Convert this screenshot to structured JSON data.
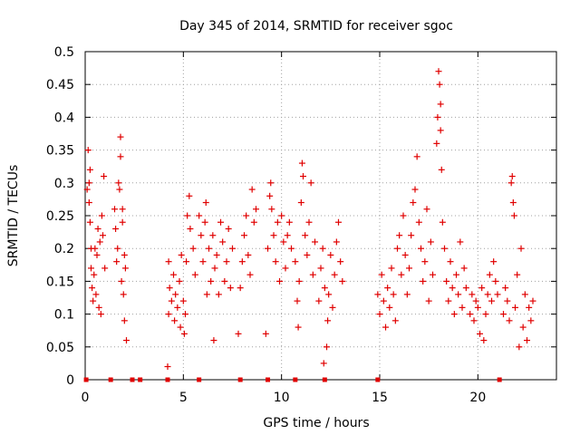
{
  "chart_data": {
    "type": "scatter",
    "title": "Day 345 of 2014, SRMTID for receiver sgoc",
    "xlabel": "GPS time / hours",
    "ylabel": "SRMTID / TECUs",
    "xlim": [
      0,
      24
    ],
    "ylim": [
      0,
      0.5
    ],
    "xticks": [
      0,
      5,
      10,
      15,
      20
    ],
    "xtick_labels": [
      "0",
      "5",
      "10",
      "15",
      "20"
    ],
    "yticks": [
      0,
      0.05,
      0.1,
      0.15,
      0.2,
      0.25,
      0.3,
      0.35,
      0.4,
      0.45,
      0.5
    ],
    "ytick_labels": [
      "0",
      "0.05",
      "0.1",
      "0.15",
      "0.2",
      "0.25",
      "0.3",
      "0.35",
      "0.4",
      "0.45",
      "0.5"
    ],
    "grid": true,
    "marker": "plus",
    "color": "#e00000",
    "series": [
      {
        "name": "SRMTID",
        "points": [
          [
            0.1,
            0.29
          ],
          [
            0.15,
            0.35
          ],
          [
            0.2,
            0.3
          ],
          [
            0.2,
            0.27
          ],
          [
            0.25,
            0.24
          ],
          [
            0.3,
            0.2
          ],
          [
            0.3,
            0.17
          ],
          [
            0.35,
            0.14
          ],
          [
            0.4,
            0.12
          ],
          [
            0.45,
            0.16
          ],
          [
            0.5,
            0.2
          ],
          [
            0.55,
            0.13
          ],
          [
            0.6,
            0.19
          ],
          [
            0.65,
            0.23
          ],
          [
            0.7,
            0.11
          ],
          [
            0.75,
            0.21
          ],
          [
            0.8,
            0.1
          ],
          [
            0.85,
            0.25
          ],
          [
            0.9,
            0.22
          ],
          [
            0.95,
            0.31
          ],
          [
            1.0,
            0.17
          ],
          [
            0.25,
            0.32
          ],
          [
            1.5,
            0.26
          ],
          [
            1.55,
            0.23
          ],
          [
            1.6,
            0.18
          ],
          [
            1.65,
            0.2
          ],
          [
            1.7,
            0.3
          ],
          [
            1.75,
            0.29
          ],
          [
            1.8,
            0.37
          ],
          [
            1.8,
            0.34
          ],
          [
            1.85,
            0.15
          ],
          [
            1.9,
            0.24
          ],
          [
            1.95,
            0.13
          ],
          [
            2.0,
            0.19
          ],
          [
            2.0,
            0.09
          ],
          [
            2.05,
            0.17
          ],
          [
            2.1,
            0.06
          ],
          [
            1.9,
            0.26
          ],
          [
            4.2,
            0.02
          ],
          [
            4.25,
            0.1
          ],
          [
            4.3,
            0.14
          ],
          [
            4.4,
            0.12
          ],
          [
            4.5,
            0.16
          ],
          [
            4.55,
            0.09
          ],
          [
            4.6,
            0.13
          ],
          [
            4.7,
            0.11
          ],
          [
            4.8,
            0.15
          ],
          [
            4.85,
            0.08
          ],
          [
            4.9,
            0.19
          ],
          [
            5.0,
            0.12
          ],
          [
            5.05,
            0.07
          ],
          [
            5.1,
            0.1
          ],
          [
            5.15,
            0.18
          ],
          [
            4.25,
            0.18
          ],
          [
            5.2,
            0.25
          ],
          [
            5.3,
            0.28
          ],
          [
            5.35,
            0.23
          ],
          [
            5.5,
            0.2
          ],
          [
            5.6,
            0.16
          ],
          [
            5.8,
            0.25
          ],
          [
            5.9,
            0.22
          ],
          [
            6.0,
            0.18
          ],
          [
            6.1,
            0.24
          ],
          [
            6.15,
            0.27
          ],
          [
            6.2,
            0.13
          ],
          [
            6.3,
            0.2
          ],
          [
            6.4,
            0.15
          ],
          [
            6.5,
            0.22
          ],
          [
            6.55,
            0.06
          ],
          [
            6.6,
            0.17
          ],
          [
            6.7,
            0.19
          ],
          [
            6.8,
            0.13
          ],
          [
            6.9,
            0.24
          ],
          [
            7.0,
            0.21
          ],
          [
            7.1,
            0.15
          ],
          [
            7.2,
            0.18
          ],
          [
            7.3,
            0.23
          ],
          [
            7.4,
            0.14
          ],
          [
            7.5,
            0.2
          ],
          [
            7.8,
            0.07
          ],
          [
            7.9,
            0.14
          ],
          [
            8.0,
            0.18
          ],
          [
            8.1,
            0.22
          ],
          [
            8.2,
            0.25
          ],
          [
            8.3,
            0.19
          ],
          [
            8.4,
            0.16
          ],
          [
            8.5,
            0.29
          ],
          [
            8.6,
            0.24
          ],
          [
            8.7,
            0.26
          ],
          [
            9.2,
            0.07
          ],
          [
            9.3,
            0.2
          ],
          [
            9.4,
            0.28
          ],
          [
            9.45,
            0.3
          ],
          [
            9.5,
            0.26
          ],
          [
            9.6,
            0.22
          ],
          [
            9.7,
            0.18
          ],
          [
            9.8,
            0.24
          ],
          [
            9.9,
            0.15
          ],
          [
            10.0,
            0.25
          ],
          [
            10.1,
            0.21
          ],
          [
            10.2,
            0.17
          ],
          [
            10.3,
            0.22
          ],
          [
            10.4,
            0.24
          ],
          [
            10.5,
            0.2
          ],
          [
            10.7,
            0.18
          ],
          [
            10.8,
            0.12
          ],
          [
            10.85,
            0.08
          ],
          [
            10.9,
            0.15
          ],
          [
            11.0,
            0.27
          ],
          [
            11.05,
            0.33
          ],
          [
            11.1,
            0.31
          ],
          [
            11.2,
            0.22
          ],
          [
            11.3,
            0.19
          ],
          [
            11.4,
            0.24
          ],
          [
            11.5,
            0.3
          ],
          [
            11.6,
            0.16
          ],
          [
            11.7,
            0.21
          ],
          [
            11.9,
            0.12
          ],
          [
            12.0,
            0.17
          ],
          [
            12.1,
            0.2
          ],
          [
            12.15,
            0.025
          ],
          [
            12.2,
            0.14
          ],
          [
            12.3,
            0.05
          ],
          [
            12.35,
            0.09
          ],
          [
            12.4,
            0.13
          ],
          [
            12.5,
            0.19
          ],
          [
            12.6,
            0.11
          ],
          [
            12.7,
            0.16
          ],
          [
            12.8,
            0.21
          ],
          [
            12.9,
            0.24
          ],
          [
            13.0,
            0.18
          ],
          [
            13.1,
            0.15
          ],
          [
            14.9,
            0.13
          ],
          [
            15.0,
            0.1
          ],
          [
            15.1,
            0.16
          ],
          [
            15.2,
            0.12
          ],
          [
            15.3,
            0.08
          ],
          [
            15.4,
            0.14
          ],
          [
            15.5,
            0.11
          ],
          [
            15.6,
            0.17
          ],
          [
            15.7,
            0.13
          ],
          [
            15.8,
            0.09
          ],
          [
            15.9,
            0.2
          ],
          [
            16.0,
            0.22
          ],
          [
            16.1,
            0.16
          ],
          [
            16.2,
            0.25
          ],
          [
            16.3,
            0.19
          ],
          [
            16.4,
            0.13
          ],
          [
            16.5,
            0.17
          ],
          [
            16.6,
            0.22
          ],
          [
            16.7,
            0.27
          ],
          [
            16.8,
            0.29
          ],
          [
            16.9,
            0.34
          ],
          [
            17.0,
            0.24
          ],
          [
            17.1,
            0.2
          ],
          [
            17.2,
            0.15
          ],
          [
            17.3,
            0.18
          ],
          [
            17.4,
            0.26
          ],
          [
            17.5,
            0.12
          ],
          [
            17.6,
            0.21
          ],
          [
            17.7,
            0.16
          ],
          [
            17.9,
            0.36
          ],
          [
            17.95,
            0.4
          ],
          [
            18.0,
            0.47
          ],
          [
            18.05,
            0.45
          ],
          [
            18.1,
            0.42
          ],
          [
            18.1,
            0.38
          ],
          [
            18.15,
            0.32
          ],
          [
            18.2,
            0.24
          ],
          [
            18.3,
            0.2
          ],
          [
            18.4,
            0.15
          ],
          [
            18.5,
            0.12
          ],
          [
            18.6,
            0.18
          ],
          [
            18.7,
            0.14
          ],
          [
            18.8,
            0.1
          ],
          [
            18.9,
            0.16
          ],
          [
            19.0,
            0.13
          ],
          [
            19.1,
            0.21
          ],
          [
            19.2,
            0.11
          ],
          [
            19.3,
            0.17
          ],
          [
            19.4,
            0.14
          ],
          [
            19.6,
            0.1
          ],
          [
            19.7,
            0.13
          ],
          [
            19.8,
            0.09
          ],
          [
            19.9,
            0.12
          ],
          [
            20.0,
            0.11
          ],
          [
            20.1,
            0.07
          ],
          [
            20.2,
            0.14
          ],
          [
            20.3,
            0.06
          ],
          [
            20.4,
            0.1
          ],
          [
            20.5,
            0.13
          ],
          [
            20.6,
            0.16
          ],
          [
            20.7,
            0.12
          ],
          [
            20.8,
            0.18
          ],
          [
            20.9,
            0.15
          ],
          [
            21.0,
            0.13
          ],
          [
            21.3,
            0.1
          ],
          [
            21.4,
            0.14
          ],
          [
            21.5,
            0.12
          ],
          [
            21.6,
            0.09
          ],
          [
            21.7,
            0.3
          ],
          [
            21.75,
            0.31
          ],
          [
            21.8,
            0.27
          ],
          [
            21.85,
            0.25
          ],
          [
            21.9,
            0.11
          ],
          [
            22.0,
            0.16
          ],
          [
            22.1,
            0.05
          ],
          [
            22.2,
            0.2
          ],
          [
            22.3,
            0.08
          ],
          [
            22.4,
            0.13
          ],
          [
            22.5,
            0.06
          ],
          [
            22.6,
            0.11
          ],
          [
            22.7,
            0.09
          ],
          [
            22.8,
            0.12
          ]
        ]
      }
    ],
    "zero_points": [
      0.05,
      1.3,
      2.4,
      2.8,
      4.2,
      5.8,
      7.9,
      9.3,
      10.7,
      12.2,
      14.9,
      21.1
    ]
  }
}
